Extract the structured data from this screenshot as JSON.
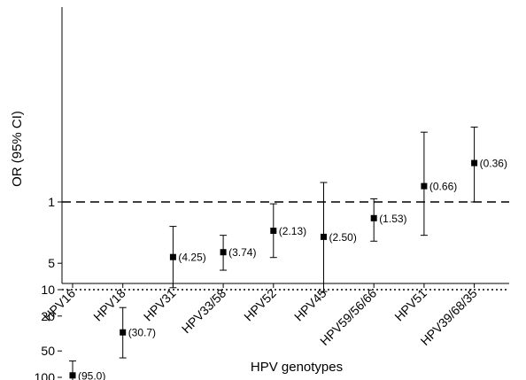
{
  "chart_data": {
    "type": "scatter",
    "xlabel": "HPV genotypes",
    "ylabel": "OR (95% CI)",
    "y_scale": "log",
    "ylim": [
      0.1,
      150
    ],
    "yticks": [
      {
        "value": 1,
        "label": "1"
      },
      {
        "value": 5,
        "label": "5"
      },
      {
        "value": 10,
        "label": "10"
      },
      {
        "value": 20,
        "label": "20"
      },
      {
        "value": 50,
        "label": "50"
      },
      {
        "value": 100,
        "label": "100"
      }
    ],
    "reference_lines": [
      {
        "value": 10,
        "style": "dotted"
      },
      {
        "value": 1,
        "style": "dashed"
      }
    ],
    "grid": false,
    "legend": "none",
    "points": [
      {
        "category": "HPV16",
        "or": 95.0,
        "lower": 65,
        "upper": 140,
        "label": "(95.0)"
      },
      {
        "category": "HPV18",
        "or": 30.7,
        "lower": 16,
        "upper": 60,
        "label": "(30.7)"
      },
      {
        "category": "HPV31",
        "or": 4.25,
        "lower": 1.9,
        "upper": 9.5,
        "label": "(4.25)"
      },
      {
        "category": "HPV33/58",
        "or": 3.74,
        "lower": 2.4,
        "upper": 6,
        "label": "(3.74)"
      },
      {
        "category": "HPV52",
        "or": 2.13,
        "lower": 1.05,
        "upper": 4.3,
        "label": "(2.13)"
      },
      {
        "category": "HPV45",
        "or": 2.5,
        "lower": 0.6,
        "upper": 10.5,
        "label": "(2.50)"
      },
      {
        "category": "HPV59/56/66",
        "or": 1.53,
        "lower": 0.92,
        "upper": 2.8,
        "label": "(1.53)"
      },
      {
        "category": "HPV51",
        "or": 0.66,
        "lower": 0.16,
        "upper": 2.4,
        "label": "(0.66)"
      },
      {
        "category": "HPV39/68/35",
        "or": 0.36,
        "lower": 0.14,
        "upper": 1.0,
        "label": "(0.36)"
      }
    ]
  }
}
